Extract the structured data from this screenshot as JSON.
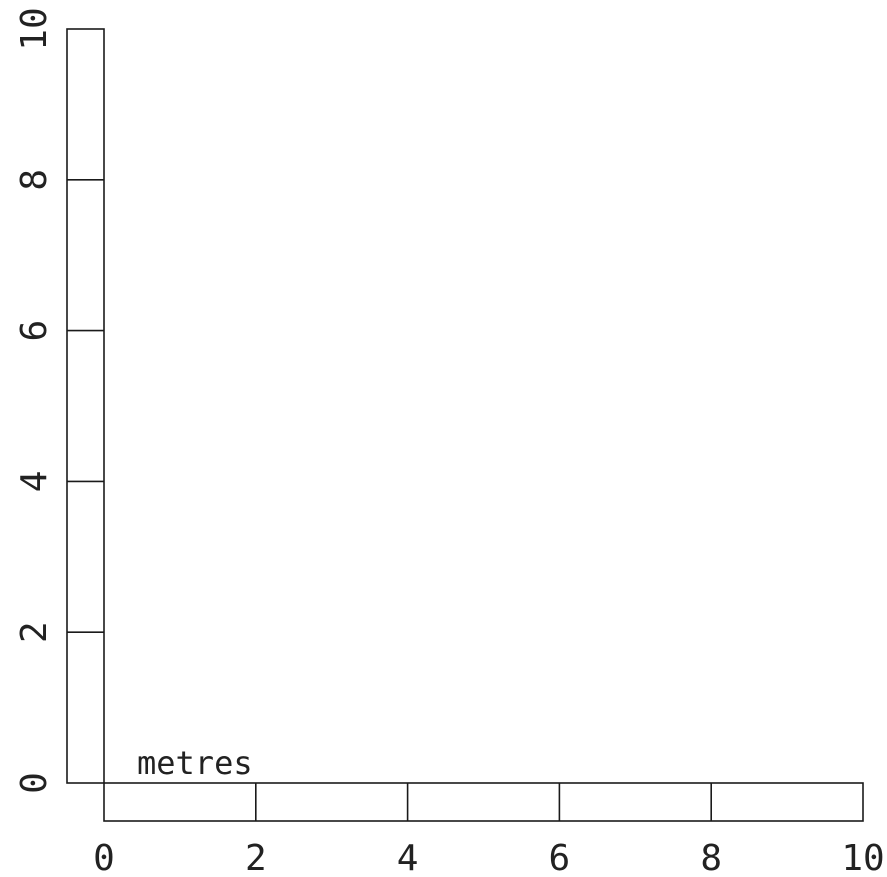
{
  "scale_bar": {
    "unit_label": "metres",
    "x_ticks": [
      "0",
      "2",
      "4",
      "6",
      "8",
      "10"
    ],
    "y_ticks": [
      "0",
      "2",
      "4",
      "6",
      "8",
      "10"
    ],
    "x_range": [
      0,
      10
    ],
    "y_range": [
      0,
      10
    ],
    "tick_step": 2
  },
  "colors": {
    "stroke": "#1a1a1a",
    "background": "#ffffff"
  }
}
